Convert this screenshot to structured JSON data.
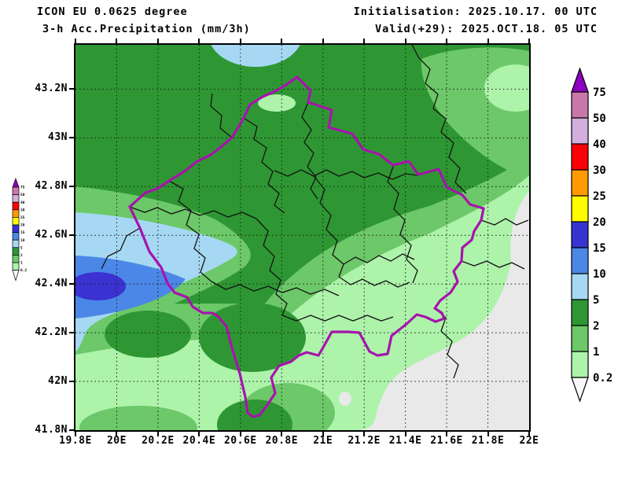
{
  "header": {
    "model": "ICON EU 0.0625 degree",
    "product": "3-h Acc.Precipitation (mm/3h)",
    "initialisation": "Initialisation: 2025.10.17. 00 UTC",
    "valid": "Valid(+29): 2025.OCT.18. 05 UTC"
  },
  "map_data": {
    "type": "filled-contour precipitation map",
    "region": "Kosovo and surroundings",
    "x_ticks": [
      "19.8E",
      "20E",
      "20.2E",
      "20.4E",
      "20.6E",
      "20.8E",
      "21E",
      "21.2E",
      "21.4E",
      "21.6E",
      "21.8E",
      "22E"
    ],
    "y_ticks": [
      "41.8N",
      "42N",
      "42.2N",
      "42.4N",
      "42.6N",
      "42.8N",
      "43N",
      "43.2N"
    ],
    "lon_min": 19.8,
    "lon_max": 22.0,
    "lat_min": 41.8,
    "grid": "dotted graticule every 0.2 degree",
    "fields_note": "2-5 mm over most of area; 5-20 mm maximum at west edge near 42.4N; 5-10 mm spot at top centre; 0.2-1 mm and below 0.2 mm towards south-east corner"
  },
  "legend": {
    "labels": [
      "75",
      "50",
      "40",
      "30",
      "25",
      "20",
      "15",
      "10",
      "5",
      "2",
      "1",
      "0.2"
    ],
    "colors": [
      "#8e00c0",
      "#c878a8",
      "#d4aede",
      "#fb0007",
      "#ff9b00",
      "#fffc00",
      "#3733d1",
      "#4b87e6",
      "#a6d8f3",
      "#2e9733",
      "#6cc868",
      "#adf3aa",
      "#f8f8f8"
    ]
  },
  "palette": {
    "rain_lt02": "#e9e9e9",
    "green_dark": "#2e9733",
    "green_mid": "#6cc868",
    "green_light": "#adf3aa",
    "blue_light": "#a6d8f3",
    "blue_mid": "#4b87e6",
    "blue_dark": "#3b32d1",
    "border_purple": "#a713ad",
    "boundary_black": "#141414",
    "grid_black": "#1a1a1a"
  }
}
